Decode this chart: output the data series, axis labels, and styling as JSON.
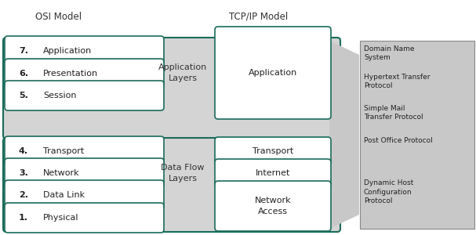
{
  "title_osi": "OSI Model",
  "title_tcp": "TCP/IP Model",
  "fig_w": 6.07,
  "fig_h": 3.0,
  "dpi": 100,
  "bg_color": "#f0f0f0",
  "box_edge_color": "#1a6b5a",
  "box_face_color": "#ffffff",
  "group_bg_color": "#d4d4d4",
  "group_edge_color": "#1a6b5a",
  "proto_bg_color": "#c8c8c8",
  "proto_edge_color": "#888888",
  "arrow_color": "#c0c0c0",
  "osi_layers": [
    {
      "num": "7.",
      "name": "Application"
    },
    {
      "num": "6.",
      "name": "Presentation"
    },
    {
      "num": "5.",
      "name": "Session"
    },
    {
      "num": "4.",
      "name": "Transport"
    },
    {
      "num": "3.",
      "name": "Network"
    },
    {
      "num": "2.",
      "name": "Data Link"
    },
    {
      "num": "1.",
      "name": "Physical"
    }
  ],
  "tcp_layers": [
    {
      "label": "Application"
    },
    {
      "label": "Transport"
    },
    {
      "label": "Internet"
    },
    {
      "label": "Network\nAccess"
    }
  ],
  "protocols": [
    {
      "text": "Domain Name\nSystem"
    },
    {
      "text": "Hypertext Transfer\nProtocol"
    },
    {
      "text": "Simple Mail\nTransfer Protocol"
    },
    {
      "text": "Post Office Protocol"
    },
    {
      "text": "Dynamic Host\nConfiguration\nProtocol"
    }
  ],
  "app_group_label": "Application\nLayers",
  "data_group_label": "Data Flow\nLayers"
}
